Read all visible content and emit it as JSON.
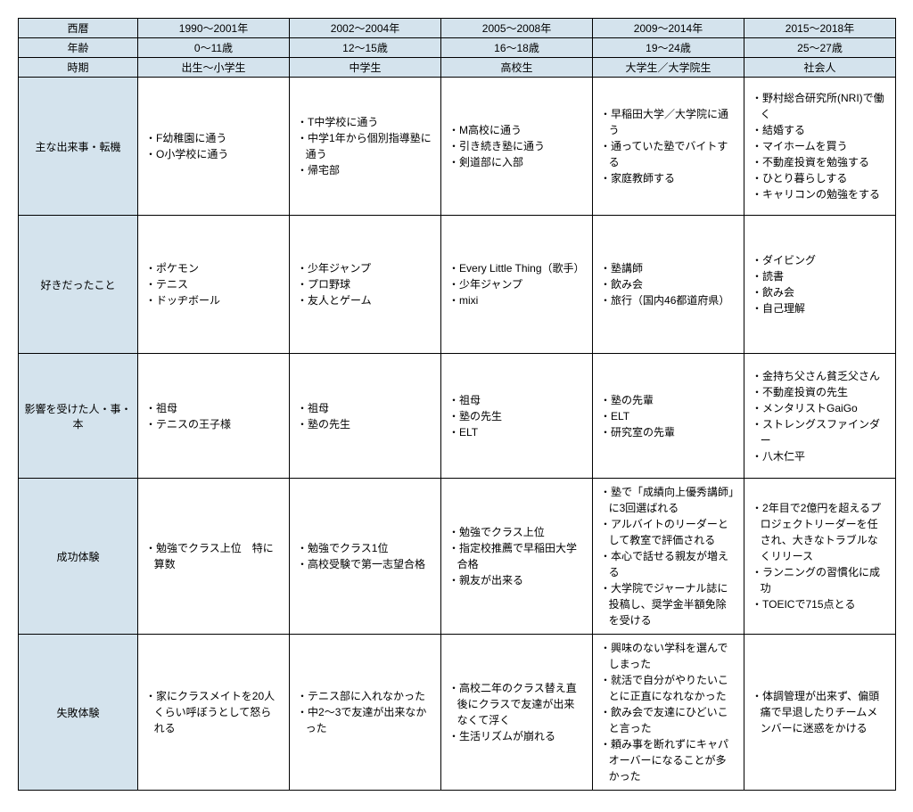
{
  "headers": {
    "row1_label": "西暦",
    "row2_label": "年齢",
    "row3_label": "時期",
    "periods": [
      {
        "era": "1990～2001年",
        "age": "0～11歳",
        "stage": "出生～小学生"
      },
      {
        "era": "2002～2004年",
        "age": "12～15歳",
        "stage": "中学生"
      },
      {
        "era": "2005～2008年",
        "age": "16～18歳",
        "stage": "高校生"
      },
      {
        "era": "2009～2014年",
        "age": "19～24歳",
        "stage": "大学生／大学院生"
      },
      {
        "era": "2015～2018年",
        "age": "25～27歳",
        "stage": "社会人"
      }
    ]
  },
  "rows": [
    {
      "label": "主な出来事・転機",
      "cells": [
        [
          "F幼稚園に通う",
          "O小学校に通う"
        ],
        [
          "T中学校に通う",
          "中学1年から個別指導塾に通う",
          "帰宅部"
        ],
        [
          "M高校に通う",
          "引き続き塾に通う",
          "剣道部に入部"
        ],
        [
          "早稲田大学／大学院に通う",
          "通っていた塾でバイトする",
          "家庭教師する"
        ],
        [
          "野村総合研究所(NRI)で働く",
          "結婚する",
          "マイホームを買う",
          "不動産投資を勉強する",
          "ひとり暮らしする",
          "キャリコンの勉強をする"
        ]
      ]
    },
    {
      "label": "好きだったこと",
      "cells": [
        [
          "ポケモン",
          "テニス",
          "ドッヂボール"
        ],
        [
          "少年ジャンプ",
          "プロ野球",
          "友人とゲーム"
        ],
        [
          "Every Little Thing（歌手）",
          "少年ジャンプ",
          "mixi"
        ],
        [
          "塾講師",
          "飲み会",
          "旅行（国内46都道府県）"
        ],
        [
          "ダイビング",
          "読書",
          "飲み会",
          "自己理解"
        ]
      ]
    },
    {
      "label": "影響を受けた人・事・本",
      "cells": [
        [
          "祖母",
          "テニスの王子様"
        ],
        [
          "祖母",
          "塾の先生"
        ],
        [
          "祖母",
          "塾の先生",
          "ELT"
        ],
        [
          "塾の先輩",
          "ELT",
          "研究室の先輩"
        ],
        [
          "金持ち父さん貧乏父さん",
          "不動産投資の先生",
          "メンタリストGaiGo",
          "ストレングスファインダー",
          "八木仁平"
        ]
      ]
    },
    {
      "label": "成功体験",
      "cells": [
        [
          "勉強でクラス上位　特に算数"
        ],
        [
          "勉強でクラス1位",
          "高校受験で第一志望合格"
        ],
        [
          "勉強でクラス上位",
          "指定校推薦で早稲田大学合格",
          "親友が出来る"
        ],
        [
          "塾で「成績向上優秀講師」に3回選ばれる",
          "アルバイトのリーダーとして教室で評価される",
          "本心で話せる親友が増える",
          "大学院でジャーナル誌に投稿し、奨学金半額免除を受ける"
        ],
        [
          "2年目で2億円を超えるプロジェクトリーダーを任され、大きなトラブルなくリリース",
          "ランニングの習慣化に成功",
          "TOEICで715点とる"
        ]
      ]
    },
    {
      "label": "失敗体験",
      "cells": [
        [
          "家にクラスメイトを20人くらい呼ぼうとして怒られる"
        ],
        [
          "テニス部に入れなかった",
          "中2～3で友達が出来なかった"
        ],
        [
          "高校二年のクラス替え直後にクラスで友達が出来なくて浮く",
          "生活リズムが崩れる"
        ],
        [
          "興味のない学科を選んでしまった",
          "就活で自分がやりたいことに正直になれなかった",
          "飲み会で友達にひどいこと言った",
          "頼み事を断れずにキャパオーバーになることが多かった"
        ],
        [
          "体調管理が出来ず、偏頭痛で早退したりチームメンバーに迷惑をかける"
        ]
      ]
    }
  ],
  "style": {
    "header_bg": "#d4e3ed",
    "border_color": "#000000",
    "cell_bg": "#ffffff",
    "font_size": 12
  }
}
